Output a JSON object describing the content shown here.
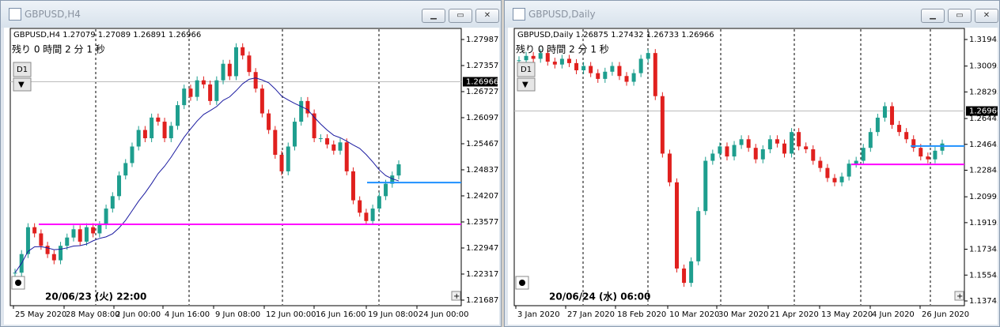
{
  "windows": [
    {
      "title": "GBPUSD,H4",
      "info": "GBPUSD,H4  1.27079 1.27089 1.26891 1.26966",
      "countdown": "残り 0 時間 2 分 1 秒",
      "period_button": "D1",
      "cursor_time": "20/06/23 (火) 22:00",
      "ylim": [
        1.21572,
        1.28235
      ],
      "price_ticks": [
        1.27987,
        1.27357,
        1.26727,
        1.26097,
        1.25467,
        1.24837,
        1.24207,
        1.23577,
        1.22947,
        1.22317,
        1.21687
      ],
      "current_price": 1.26966,
      "time_labels": [
        "25 May 2020",
        "28 May 08:00",
        "2 Jun 00:00",
        "4 Jun 16:00",
        "9 Jun 08:00",
        "12 Jun 00:00",
        "16 Jun 16:00",
        "19 Jun 08:00",
        "24 Jun 00:00"
      ],
      "levels": [
        1.2352,
        1.2453
      ],
      "level_colors": [
        "#ff00ff",
        "#1e90ff"
      ],
      "closes": [
        1.2235,
        1.228,
        1.2345,
        1.233,
        1.23,
        1.228,
        1.2265,
        1.23,
        1.232,
        1.234,
        1.231,
        1.2345,
        1.233,
        1.235,
        1.239,
        1.242,
        1.247,
        1.25,
        1.254,
        1.258,
        1.256,
        1.261,
        1.26,
        1.256,
        1.259,
        1.264,
        1.268,
        1.266,
        1.27,
        1.269,
        1.265,
        1.27,
        1.274,
        1.271,
        1.278,
        1.276,
        1.272,
        1.268,
        1.262,
        1.258,
        1.252,
        1.248,
        1.254,
        1.26,
        1.265,
        1.262,
        1.256,
        1.256,
        1.2545,
        1.253,
        1.255,
        1.248,
        1.241,
        1.238,
        1.236,
        1.239,
        1.242,
        1.245,
        1.247,
        1.2497
      ]
    },
    {
      "title": "GBPUSD,Daily",
      "info": "GBPUSD,Daily  1.26875 1.27432 1.26733 1.26966",
      "countdown": "残り 0 時間 2 分 1 秒",
      "period_button": "D1",
      "cursor_time": "20/06/24 (水) 06:00",
      "ylim": [
        1.13468,
        1.32658
      ],
      "price_ticks": [
        1.31943,
        1.30093,
        1.28293,
        1.26443,
        1.24643,
        1.22843,
        1.20993,
        1.19193,
        1.17343,
        1.15543,
        1.13743
      ],
      "current_price": 1.26966,
      "time_labels": [
        "3 Jan 2020",
        "27 Jan 2020",
        "18 Feb 2020",
        "10 Mar 2020",
        "30 Mar 2020",
        "21 Apr 2020",
        "13 May 2020",
        "4 Jun 2020",
        "26 Jun 2020"
      ],
      "levels": [
        1.2325,
        1.2453
      ],
      "level_colors": [
        "#ff00ff",
        "#1e90ff"
      ],
      "closes": [
        1.305,
        1.308,
        1.306,
        1.31,
        1.304,
        1.302,
        1.306,
        1.303,
        1.298,
        1.301,
        1.296,
        1.292,
        1.297,
        1.301,
        1.294,
        1.29,
        1.296,
        1.306,
        1.31,
        1.28,
        1.24,
        1.22,
        1.16,
        1.15,
        1.165,
        1.2,
        1.235,
        1.24,
        1.245,
        1.238,
        1.246,
        1.25,
        1.244,
        1.236,
        1.243,
        1.25,
        1.247,
        1.24,
        1.255,
        1.245,
        1.243,
        1.235,
        1.23,
        1.223,
        1.22,
        1.224,
        1.233,
        1.235,
        1.244,
        1.255,
        1.265,
        1.273,
        1.26,
        1.255,
        1.25,
        1.244,
        1.238,
        1.236,
        1.242,
        1.247
      ]
    }
  ]
}
